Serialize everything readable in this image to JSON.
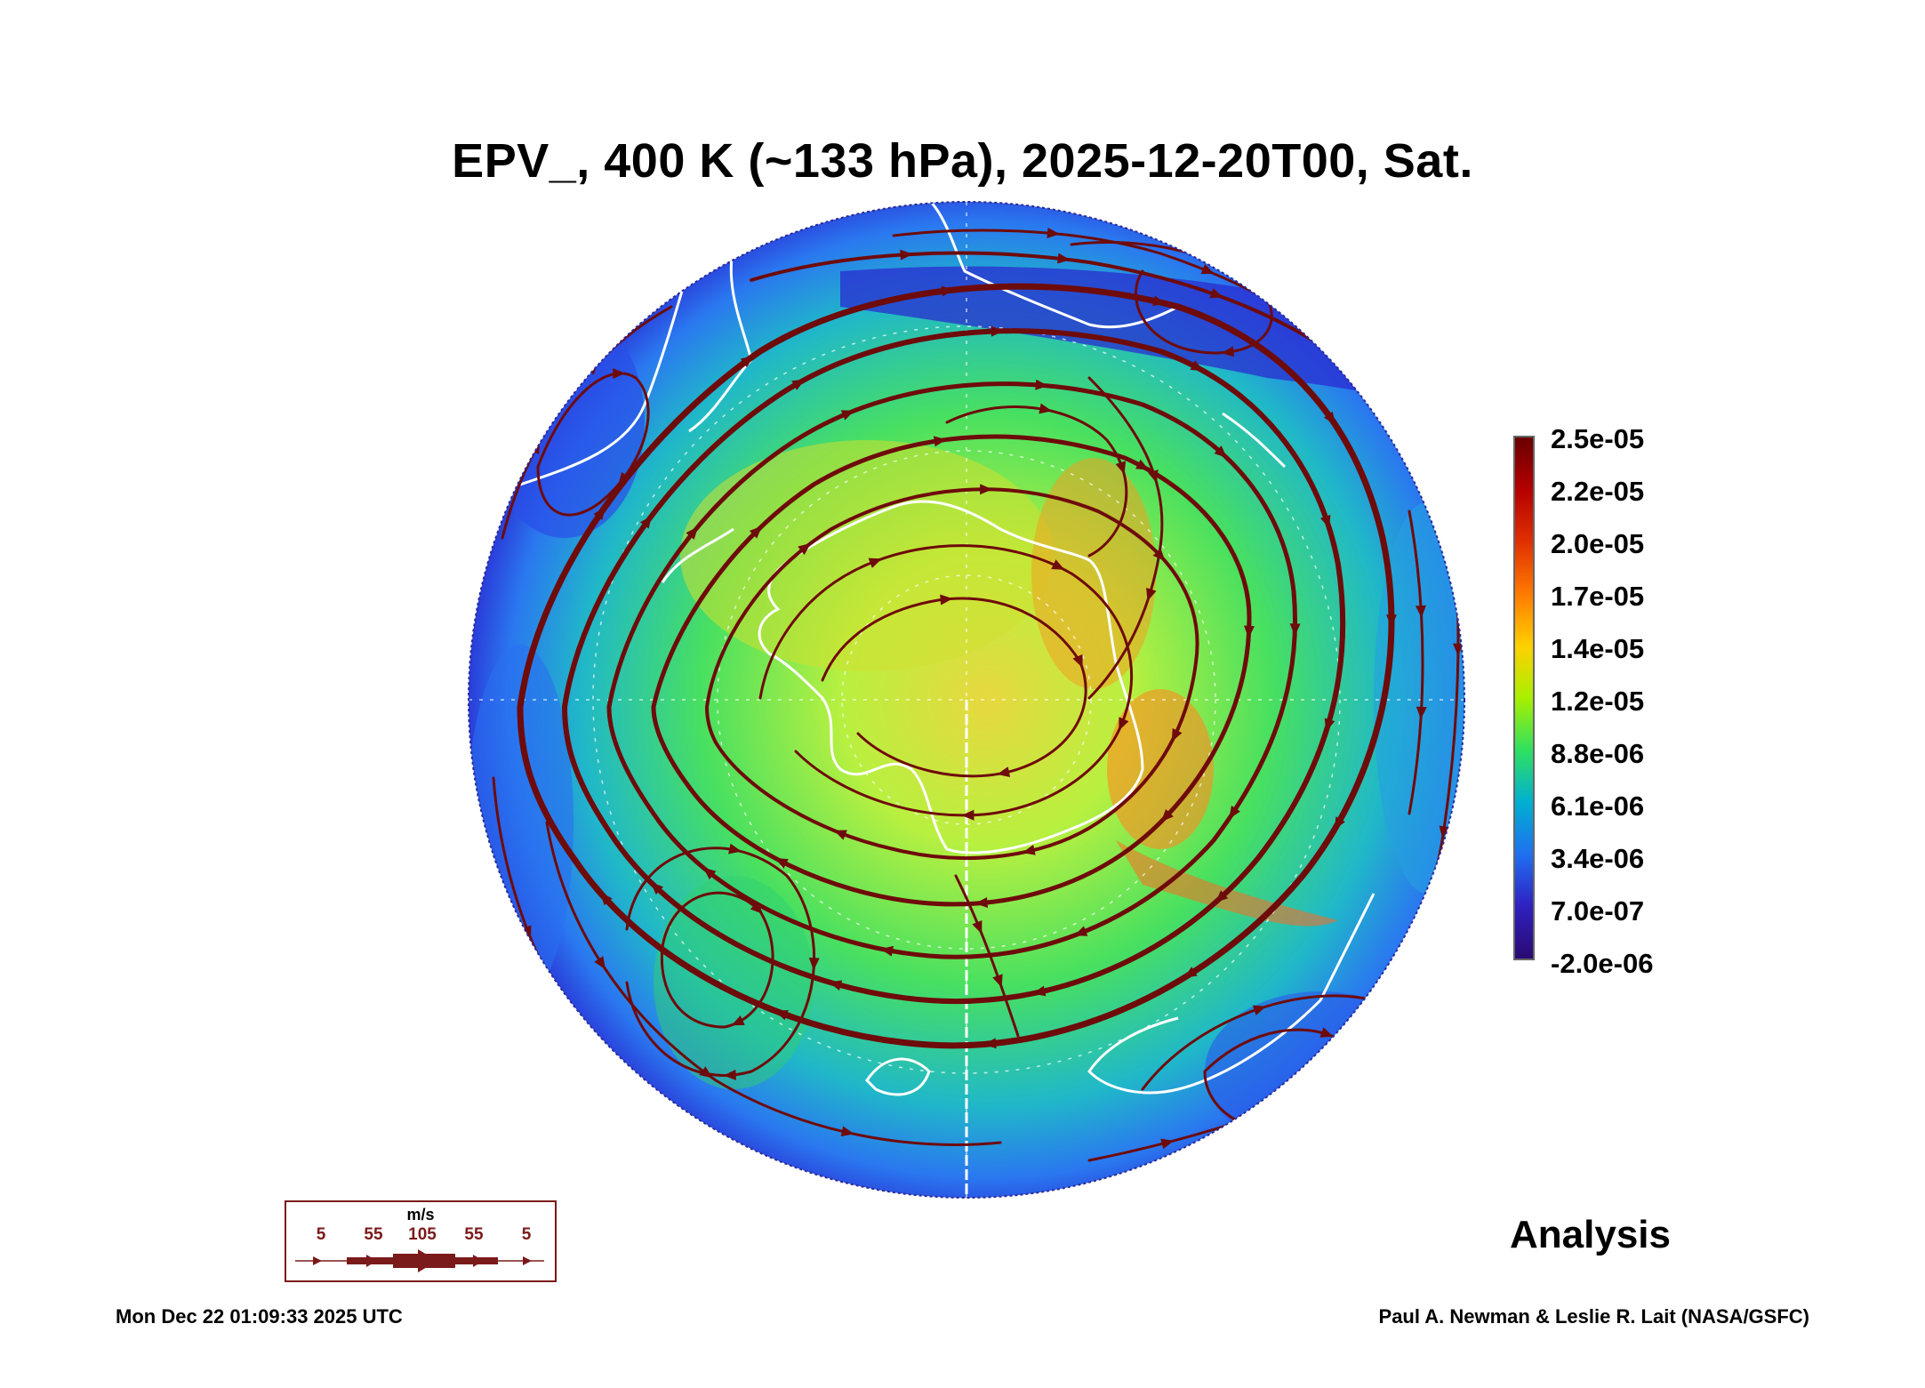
{
  "title": "EPV_, 400 K (~133 hPa), 2025-12-20T00, Sat.",
  "colorbar": {
    "labels": [
      "2.5e-05",
      "2.2e-05",
      "2.0e-05",
      "1.7e-05",
      "1.4e-05",
      "1.2e-05",
      "8.8e-06",
      "6.1e-06",
      "3.4e-06",
      "7.0e-07",
      "-2.0e-06"
    ],
    "colors": [
      "#6a0000",
      "#b50000",
      "#e03000",
      "#ff7a00",
      "#ffd000",
      "#a8f000",
      "#30e060",
      "#00b0d0",
      "#2070f0",
      "#3020c0",
      "#2a0a70"
    ]
  },
  "legend": {
    "unit": "m/s",
    "values": [
      "5",
      "55",
      "105",
      "55",
      "5"
    ],
    "color": "#7b1a1a"
  },
  "label": "Analysis",
  "footer": {
    "timestamp": "Mon Dec 22 01:09:33 2025 UTC",
    "credit": "Paul A. Newman & Leslie R. Lait (NASA/GSFC)"
  },
  "map_colors": {
    "outer": "#1e3ee0",
    "ring": "#1fa0e8",
    "mid": "#3fe070",
    "inner": "#b6f040",
    "core": "#f0d030",
    "hot": "#ff8a20",
    "streamline": "#6e0b0b",
    "coast": "#ffffff"
  }
}
